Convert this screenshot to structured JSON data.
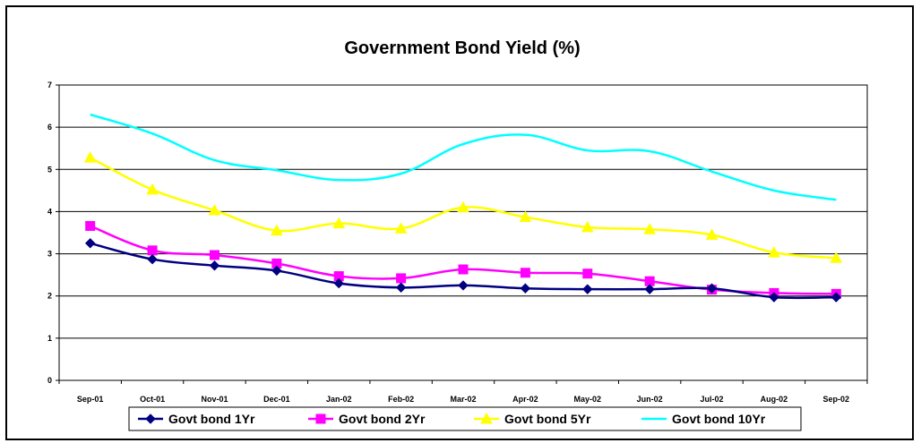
{
  "chart_data": {
    "type": "line",
    "title": "Government Bond Yield (%)",
    "xlabel": "",
    "ylabel": "",
    "ylim": [
      0,
      7
    ],
    "yticks": [
      0,
      1,
      2,
      3,
      4,
      5,
      6,
      7
    ],
    "grid": true,
    "legend_position": "bottom",
    "categories": [
      "Sep-01",
      "Oct-01",
      "Nov-01",
      "Dec-01",
      "Jan-02",
      "Feb-02",
      "Mar-02",
      "Apr-02",
      "May-02",
      "Jun-02",
      "Jul-02",
      "Aug-02",
      "Sep-02"
    ],
    "series": [
      {
        "name": "Govt bond 1Yr",
        "color": "#000080",
        "marker": "diamond",
        "values": [
          3.25,
          2.87,
          2.72,
          2.6,
          2.3,
          2.2,
          2.25,
          2.18,
          2.16,
          2.16,
          2.18,
          1.97,
          1.97
        ]
      },
      {
        "name": "Govt bond 2Yr",
        "color": "#ff00ff",
        "marker": "square",
        "values": [
          3.66,
          3.08,
          2.97,
          2.77,
          2.47,
          2.42,
          2.63,
          2.55,
          2.53,
          2.35,
          2.15,
          2.07,
          2.05
        ]
      },
      {
        "name": "Govt bond 5Yr",
        "color": "#ffff00",
        "marker": "triangle",
        "values": [
          5.28,
          4.52,
          4.03,
          3.55,
          3.72,
          3.6,
          4.1,
          3.87,
          3.63,
          3.58,
          3.45,
          3.03,
          2.9
        ]
      },
      {
        "name": "Govt bond 10Yr",
        "color": "#00ffff",
        "marker": "none",
        "values": [
          6.3,
          5.85,
          5.22,
          4.98,
          4.75,
          4.9,
          5.6,
          5.82,
          5.45,
          5.43,
          4.95,
          4.5,
          4.28
        ]
      }
    ]
  }
}
